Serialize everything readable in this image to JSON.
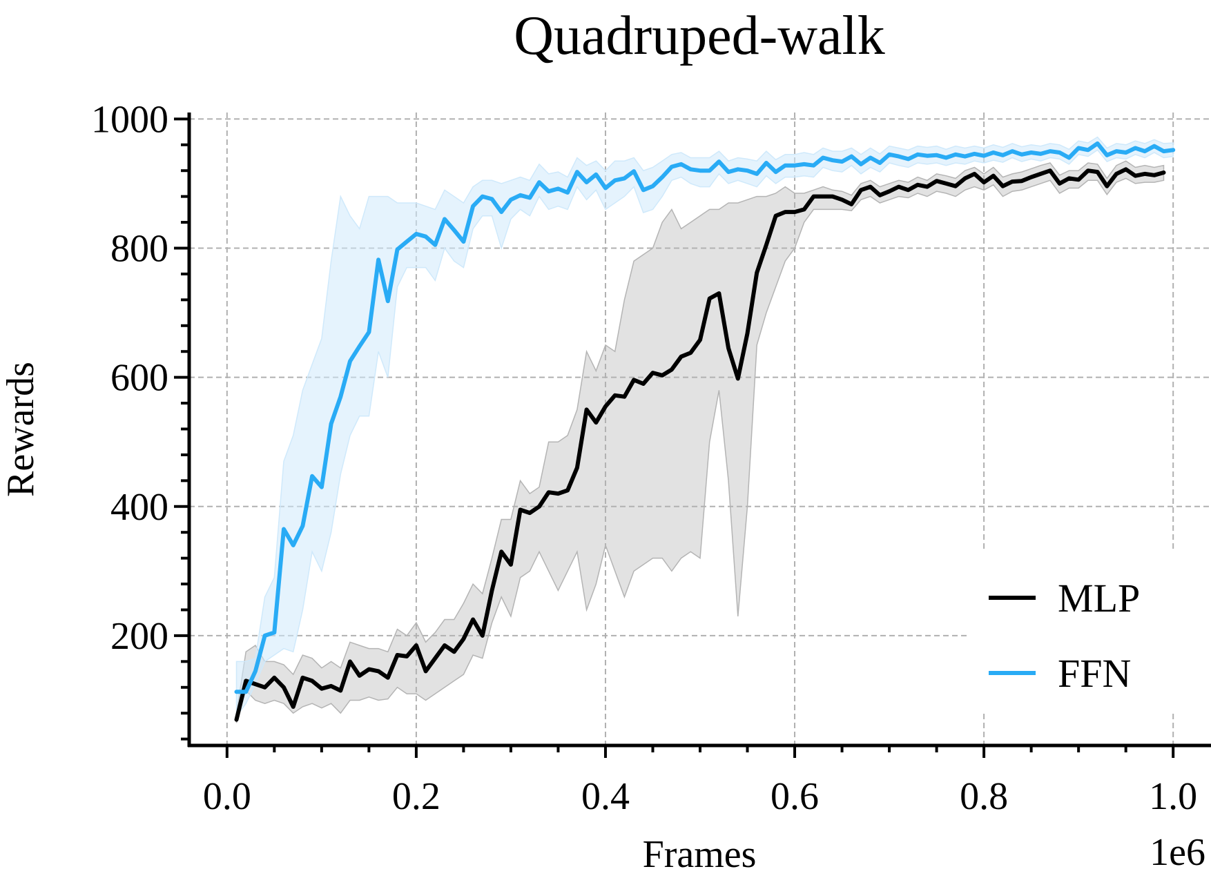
{
  "chart_data": {
    "type": "line",
    "title": "Quadruped-walk",
    "xlabel": "Frames",
    "ylabel": "Rewards",
    "x_offset_label": "1e6",
    "xlim": [
      -0.04,
      1.04
    ],
    "ylim": [
      30,
      1010
    ],
    "xticks": [
      0.0,
      0.2,
      0.4,
      0.6,
      0.8,
      1.0
    ],
    "xtick_labels": [
      "0.0",
      "0.2",
      "0.4",
      "0.6",
      "0.8",
      "1.0"
    ],
    "yticks": [
      200,
      400,
      600,
      800,
      1000
    ],
    "ytick_labels": [
      "200",
      "400",
      "600",
      "800",
      "1000"
    ],
    "grid": true,
    "legend_position": "lower-right",
    "series": [
      {
        "name": "MLP",
        "color": "#000000",
        "band_color": "#b4b4b4",
        "x": [
          0.01,
          0.02,
          0.03,
          0.04,
          0.05,
          0.06,
          0.07,
          0.08,
          0.09,
          0.1,
          0.11,
          0.12,
          0.13,
          0.14,
          0.15,
          0.16,
          0.17,
          0.18,
          0.19,
          0.2,
          0.21,
          0.22,
          0.23,
          0.24,
          0.25,
          0.26,
          0.27,
          0.28,
          0.29,
          0.3,
          0.31,
          0.32,
          0.33,
          0.34,
          0.35,
          0.36,
          0.37,
          0.38,
          0.39,
          0.4,
          0.41,
          0.42,
          0.43,
          0.44,
          0.45,
          0.46,
          0.47,
          0.48,
          0.49,
          0.5,
          0.51,
          0.52,
          0.53,
          0.54,
          0.55,
          0.56,
          0.57,
          0.58,
          0.59,
          0.6,
          0.61,
          0.62,
          0.63,
          0.64,
          0.65,
          0.66,
          0.67,
          0.68,
          0.69,
          0.7,
          0.71,
          0.72,
          0.73,
          0.74,
          0.75,
          0.76,
          0.77,
          0.78,
          0.79,
          0.8,
          0.81,
          0.82,
          0.83,
          0.84,
          0.85,
          0.86,
          0.87,
          0.88,
          0.89,
          0.9,
          0.91,
          0.92,
          0.93,
          0.94,
          0.95,
          0.96,
          0.97,
          0.98,
          0.99
        ],
        "y": [
          70,
          130,
          125,
          120,
          135,
          120,
          90,
          135,
          130,
          118,
          122,
          115,
          160,
          138,
          148,
          145,
          135,
          170,
          168,
          185,
          145,
          165,
          185,
          175,
          195,
          225,
          200,
          270,
          330,
          310,
          395,
          390,
          400,
          422,
          420,
          425,
          460,
          550,
          530,
          555,
          572,
          570,
          596,
          590,
          607,
          603,
          612,
          632,
          638,
          658,
          722,
          730,
          645,
          598,
          668,
          762,
          805,
          850,
          856,
          856,
          860,
          880,
          880,
          880,
          875,
          868,
          890,
          895,
          882,
          888,
          895,
          890,
          898,
          895,
          904,
          900,
          896,
          908,
          915,
          902,
          912,
          896,
          903,
          904,
          910,
          915,
          920,
          900,
          908,
          906,
          920,
          918,
          896,
          915,
          922,
          912,
          915,
          913,
          917
        ],
        "y_lower": [
          65,
          115,
          100,
          95,
          100,
          95,
          80,
          90,
          95,
          88,
          95,
          80,
          100,
          100,
          105,
          100,
          102,
          120,
          110,
          110,
          100,
          110,
          120,
          130,
          140,
          170,
          165,
          220,
          260,
          230,
          290,
          300,
          330,
          300,
          270,
          300,
          330,
          240,
          280,
          340,
          300,
          260,
          300,
          310,
          320,
          320,
          300,
          320,
          330,
          320,
          500,
          580,
          440,
          230,
          400,
          650,
          700,
          740,
          780,
          800,
          840,
          860,
          860,
          860,
          860,
          858,
          875,
          880,
          870,
          875,
          880,
          878,
          885,
          880,
          888,
          885,
          880,
          890,
          895,
          890,
          898,
          880,
          888,
          890,
          895,
          900,
          905,
          885,
          893,
          893,
          905,
          905,
          883,
          902,
          908,
          900,
          902,
          902,
          905
        ],
        "y_upper": [
          80,
          175,
          185,
          160,
          160,
          155,
          140,
          170,
          165,
          150,
          160,
          150,
          190,
          185,
          180,
          180,
          175,
          210,
          200,
          220,
          190,
          205,
          225,
          225,
          250,
          280,
          265,
          320,
          380,
          380,
          440,
          420,
          430,
          500,
          500,
          510,
          550,
          640,
          610,
          650,
          640,
          720,
          780,
          790,
          800,
          840,
          860,
          830,
          840,
          850,
          860,
          860,
          870,
          870,
          875,
          880,
          880,
          885,
          895,
          885,
          885,
          890,
          895,
          890,
          888,
          882,
          900,
          905,
          895,
          900,
          905,
          902,
          910,
          905,
          915,
          912,
          908,
          920,
          925,
          915,
          925,
          910,
          915,
          918,
          923,
          928,
          932,
          913,
          920,
          920,
          932,
          930,
          908,
          928,
          935,
          925,
          928,
          925,
          928
        ]
      },
      {
        "name": "FFN",
        "color": "#29abf5",
        "band_color": "#cfe9fb",
        "x": [
          0.01,
          0.02,
          0.03,
          0.04,
          0.05,
          0.06,
          0.07,
          0.08,
          0.09,
          0.1,
          0.11,
          0.12,
          0.13,
          0.14,
          0.15,
          0.16,
          0.17,
          0.18,
          0.19,
          0.2,
          0.21,
          0.22,
          0.23,
          0.24,
          0.25,
          0.26,
          0.27,
          0.28,
          0.29,
          0.3,
          0.31,
          0.32,
          0.33,
          0.34,
          0.35,
          0.36,
          0.37,
          0.38,
          0.39,
          0.4,
          0.41,
          0.42,
          0.43,
          0.44,
          0.45,
          0.46,
          0.47,
          0.48,
          0.49,
          0.5,
          0.51,
          0.52,
          0.53,
          0.54,
          0.55,
          0.56,
          0.57,
          0.58,
          0.59,
          0.6,
          0.61,
          0.62,
          0.63,
          0.64,
          0.65,
          0.66,
          0.67,
          0.68,
          0.69,
          0.7,
          0.71,
          0.72,
          0.73,
          0.74,
          0.75,
          0.76,
          0.77,
          0.78,
          0.79,
          0.8,
          0.81,
          0.82,
          0.83,
          0.84,
          0.85,
          0.86,
          0.87,
          0.88,
          0.89,
          0.9,
          0.91,
          0.92,
          0.93,
          0.94,
          0.95,
          0.96,
          0.97,
          0.98,
          0.99,
          1.0
        ],
        "y": [
          113,
          113,
          145,
          200,
          205,
          365,
          340,
          370,
          447,
          430,
          528,
          570,
          625,
          648,
          670,
          782,
          718,
          798,
          810,
          822,
          818,
          805,
          845,
          828,
          810,
          865,
          880,
          876,
          856,
          875,
          882,
          878,
          902,
          888,
          892,
          886,
          918,
          902,
          914,
          893,
          905,
          908,
          919,
          890,
          896,
          910,
          926,
          930,
          922,
          920,
          920,
          934,
          918,
          922,
          920,
          915,
          932,
          918,
          928,
          928,
          930,
          928,
          940,
          936,
          934,
          942,
          930,
          940,
          932,
          945,
          942,
          938,
          945,
          943,
          944,
          940,
          945,
          942,
          946,
          943,
          948,
          944,
          950,
          945,
          948,
          946,
          950,
          948,
          940,
          955,
          952,
          962,
          944,
          950,
          948,
          955,
          950,
          958,
          950,
          952
        ],
        "y_lower": [
          75,
          95,
          125,
          160,
          170,
          180,
          175,
          240,
          330,
          300,
          360,
          450,
          510,
          540,
          540,
          640,
          600,
          740,
          770,
          770,
          770,
          750,
          800,
          780,
          770,
          830,
          850,
          850,
          800,
          845,
          860,
          850,
          880,
          860,
          865,
          860,
          895,
          875,
          890,
          860,
          870,
          880,
          895,
          855,
          860,
          880,
          905,
          910,
          900,
          895,
          895,
          915,
          900,
          905,
          900,
          895,
          912,
          900,
          910,
          910,
          912,
          910,
          925,
          920,
          918,
          928,
          915,
          925,
          918,
          932,
          928,
          925,
          932,
          930,
          932,
          928,
          932,
          930,
          935,
          932,
          936,
          933,
          940,
          934,
          938,
          935,
          940,
          938,
          930,
          945,
          942,
          952,
          934,
          940,
          938,
          945,
          940,
          948,
          940,
          942
        ],
        "y_upper": [
          160,
          160,
          165,
          260,
          290,
          470,
          510,
          580,
          620,
          660,
          780,
          880,
          850,
          830,
          880,
          880,
          880,
          870,
          870,
          870,
          865,
          860,
          890,
          880,
          870,
          895,
          905,
          905,
          900,
          905,
          910,
          905,
          930,
          915,
          918,
          910,
          940,
          928,
          935,
          920,
          935,
          935,
          940,
          920,
          925,
          935,
          945,
          948,
          940,
          940,
          940,
          950,
          935,
          940,
          938,
          935,
          950,
          937,
          945,
          945,
          948,
          945,
          955,
          950,
          950,
          955,
          945,
          955,
          946,
          958,
          955,
          952,
          958,
          956,
          958,
          953,
          958,
          955,
          958,
          955,
          960,
          956,
          962,
          957,
          960,
          958,
          962,
          960,
          953,
          966,
          963,
          972,
          955,
          962,
          960,
          966,
          962,
          968,
          962,
          963
        ]
      }
    ]
  }
}
